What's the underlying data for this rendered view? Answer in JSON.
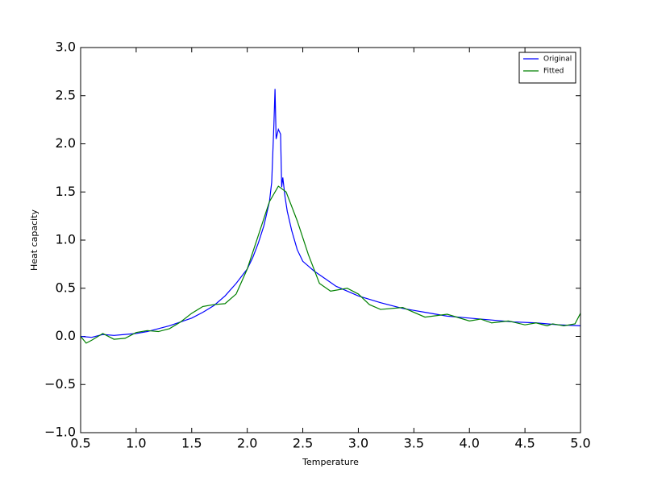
{
  "chart_data": {
    "type": "line",
    "xlabel": "Temperature",
    "ylabel": "Heat capacity",
    "xlim": [
      0.5,
      5.0
    ],
    "xticks": [
      0.5,
      {
        "value": 1.0,
        "label": "1.0"
      },
      1.5,
      {
        "value": 2.0,
        "label": "2.0"
      },
      2.5,
      {
        "value": 3.0,
        "label": "3.0"
      },
      3.5,
      {
        "value": 4.0,
        "label": "4.0"
      },
      4.5,
      {
        "value": 5.0,
        "label": "5.0"
      }
    ],
    "ylim": [
      -1.0,
      3.0
    ],
    "yticks": [
      {
        "value": -1.0,
        "label": "−1.0"
      },
      {
        "value": -0.5,
        "label": "−0.5"
      },
      {
        "value": 0.0,
        "label": "0.0"
      },
      0.5,
      {
        "value": 1.0,
        "label": "1.0"
      },
      1.5,
      {
        "value": 2.0,
        "label": "2.0"
      },
      2.5,
      {
        "value": 3.0,
        "label": "3.0"
      }
    ],
    "legend": "upper right",
    "series": [
      {
        "name": "Original",
        "color": "#0000ff",
        "x": [
          0.5,
          0.6,
          0.7,
          0.8,
          0.9,
          1.0,
          1.1,
          1.2,
          1.3,
          1.4,
          1.5,
          1.6,
          1.7,
          1.8,
          1.9,
          2.0,
          2.05,
          2.1,
          2.15,
          2.2,
          2.22,
          2.24,
          2.25,
          2.26,
          2.28,
          2.3,
          2.31,
          2.32,
          2.34,
          2.36,
          2.4,
          2.45,
          2.5,
          2.6,
          2.7,
          2.8,
          2.9,
          3.0,
          3.2,
          3.4,
          3.6,
          3.8,
          4.0,
          4.2,
          4.4,
          4.6,
          4.8,
          5.0
        ],
        "values": [
          0.0,
          -0.01,
          0.02,
          0.01,
          0.02,
          0.03,
          0.05,
          0.08,
          0.11,
          0.15,
          0.19,
          0.25,
          0.32,
          0.42,
          0.55,
          0.7,
          0.82,
          0.97,
          1.15,
          1.4,
          1.6,
          2.2,
          2.57,
          2.05,
          2.15,
          2.1,
          1.55,
          1.65,
          1.45,
          1.3,
          1.1,
          0.9,
          0.78,
          0.68,
          0.6,
          0.52,
          0.47,
          0.42,
          0.35,
          0.29,
          0.25,
          0.21,
          0.19,
          0.17,
          0.15,
          0.14,
          0.12,
          0.11
        ]
      },
      {
        "name": "Fitted",
        "color": "#008000",
        "x": [
          0.5,
          0.55,
          0.6,
          0.7,
          0.8,
          0.9,
          1.0,
          1.1,
          1.2,
          1.3,
          1.4,
          1.5,
          1.6,
          1.7,
          1.8,
          1.9,
          2.0,
          2.1,
          2.2,
          2.28,
          2.35,
          2.45,
          2.55,
          2.65,
          2.75,
          2.9,
          3.0,
          3.1,
          3.2,
          3.4,
          3.6,
          3.8,
          4.0,
          4.1,
          4.2,
          4.35,
          4.5,
          4.6,
          4.7,
          4.75,
          4.85,
          4.95,
          5.0
        ],
        "values": [
          0.0,
          -0.07,
          -0.04,
          0.03,
          -0.03,
          -0.02,
          0.04,
          0.06,
          0.05,
          0.08,
          0.15,
          0.24,
          0.31,
          0.33,
          0.34,
          0.44,
          0.7,
          1.05,
          1.4,
          1.56,
          1.5,
          1.2,
          0.85,
          0.55,
          0.47,
          0.5,
          0.44,
          0.33,
          0.28,
          0.3,
          0.2,
          0.23,
          0.16,
          0.18,
          0.14,
          0.16,
          0.12,
          0.14,
          0.11,
          0.13,
          0.11,
          0.13,
          0.24
        ]
      }
    ]
  }
}
